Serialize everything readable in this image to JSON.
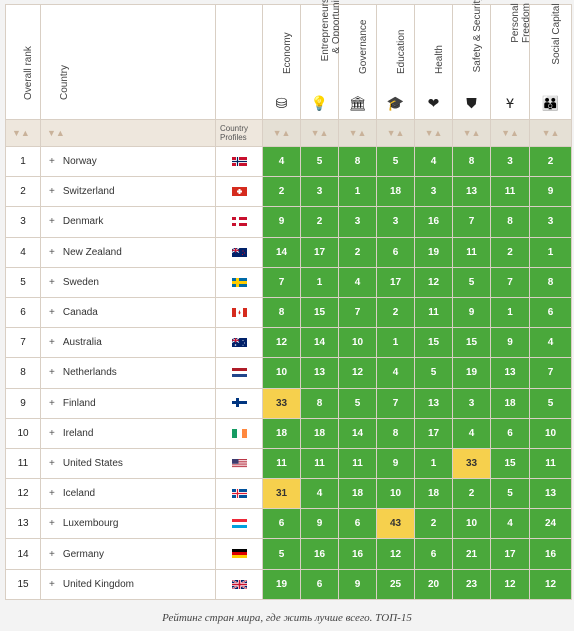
{
  "headers": {
    "rank": "Overall rank",
    "country": "Country",
    "profiles": "Country Profiles",
    "categories": [
      {
        "label": "Economy",
        "icon": "economy-icon",
        "glyph": "⛁"
      },
      {
        "label": "Entrepreneurship & Opportunity",
        "icon": "lightbulb-icon",
        "glyph": "💡"
      },
      {
        "label": "Governance",
        "icon": "government-building-icon",
        "glyph": "🏛"
      },
      {
        "label": "Education",
        "icon": "graduation-cap-icon",
        "glyph": "🎓"
      },
      {
        "label": "Health",
        "icon": "heartbeat-icon",
        "glyph": "❤"
      },
      {
        "label": "Safety & Security",
        "icon": "shield-icon",
        "glyph": "⛊"
      },
      {
        "label": "Personal Freedom",
        "icon": "person-arms-up-icon",
        "glyph": "Ұ"
      },
      {
        "label": "Social Capital",
        "icon": "people-group-icon",
        "glyph": "👪"
      }
    ]
  },
  "sort_glyph": "▼▲",
  "colors": {
    "green": "#4aa83b",
    "yellow": "#f6d04d"
  },
  "rows": [
    {
      "rank": "1",
      "country": "Norway",
      "flag": "no",
      "scores": [
        "4",
        "5",
        "8",
        "5",
        "4",
        "8",
        "3",
        "2"
      ],
      "hl": []
    },
    {
      "rank": "2",
      "country": "Switzerland",
      "flag": "ch",
      "scores": [
        "2",
        "3",
        "1",
        "18",
        "3",
        "13",
        "11",
        "9"
      ],
      "hl": []
    },
    {
      "rank": "3",
      "country": "Denmark",
      "flag": "dk",
      "scores": [
        "9",
        "2",
        "3",
        "3",
        "16",
        "7",
        "8",
        "3"
      ],
      "hl": []
    },
    {
      "rank": "4",
      "country": "New Zealand",
      "flag": "nz",
      "scores": [
        "14",
        "17",
        "2",
        "6",
        "19",
        "11",
        "2",
        "1"
      ],
      "hl": []
    },
    {
      "rank": "5",
      "country": "Sweden",
      "flag": "se",
      "scores": [
        "7",
        "1",
        "4",
        "17",
        "12",
        "5",
        "7",
        "8"
      ],
      "hl": []
    },
    {
      "rank": "6",
      "country": "Canada",
      "flag": "ca",
      "scores": [
        "8",
        "15",
        "7",
        "2",
        "11",
        "9",
        "1",
        "6"
      ],
      "hl": []
    },
    {
      "rank": "7",
      "country": "Australia",
      "flag": "au",
      "scores": [
        "12",
        "14",
        "10",
        "1",
        "15",
        "15",
        "9",
        "4"
      ],
      "hl": []
    },
    {
      "rank": "8",
      "country": "Netherlands",
      "flag": "nl",
      "scores": [
        "10",
        "13",
        "12",
        "4",
        "5",
        "19",
        "13",
        "7"
      ],
      "hl": []
    },
    {
      "rank": "9",
      "country": "Finland",
      "flag": "fi",
      "scores": [
        "33",
        "8",
        "5",
        "7",
        "13",
        "3",
        "18",
        "5"
      ],
      "hl": [
        0
      ]
    },
    {
      "rank": "10",
      "country": "Ireland",
      "flag": "ie",
      "scores": [
        "18",
        "18",
        "14",
        "8",
        "17",
        "4",
        "6",
        "10"
      ],
      "hl": []
    },
    {
      "rank": "11",
      "country": "United States",
      "flag": "us",
      "scores": [
        "11",
        "11",
        "11",
        "9",
        "1",
        "33",
        "15",
        "11"
      ],
      "hl": [
        5
      ]
    },
    {
      "rank": "12",
      "country": "Iceland",
      "flag": "is",
      "scores": [
        "31",
        "4",
        "18",
        "10",
        "18",
        "2",
        "5",
        "13"
      ],
      "hl": [
        0
      ]
    },
    {
      "rank": "13",
      "country": "Luxembourg",
      "flag": "lu",
      "scores": [
        "6",
        "9",
        "6",
        "43",
        "2",
        "10",
        "4",
        "24"
      ],
      "hl": [
        3
      ]
    },
    {
      "rank": "14",
      "country": "Germany",
      "flag": "de",
      "scores": [
        "5",
        "16",
        "16",
        "12",
        "6",
        "21",
        "17",
        "16"
      ],
      "hl": []
    },
    {
      "rank": "15",
      "country": "United Kingdom",
      "flag": "gb",
      "scores": [
        "19",
        "6",
        "9",
        "25",
        "20",
        "23",
        "12",
        "12"
      ],
      "hl": []
    }
  ],
  "caption": "Рейтинг стран мира, где жить лучше всего. ТОП-15"
}
